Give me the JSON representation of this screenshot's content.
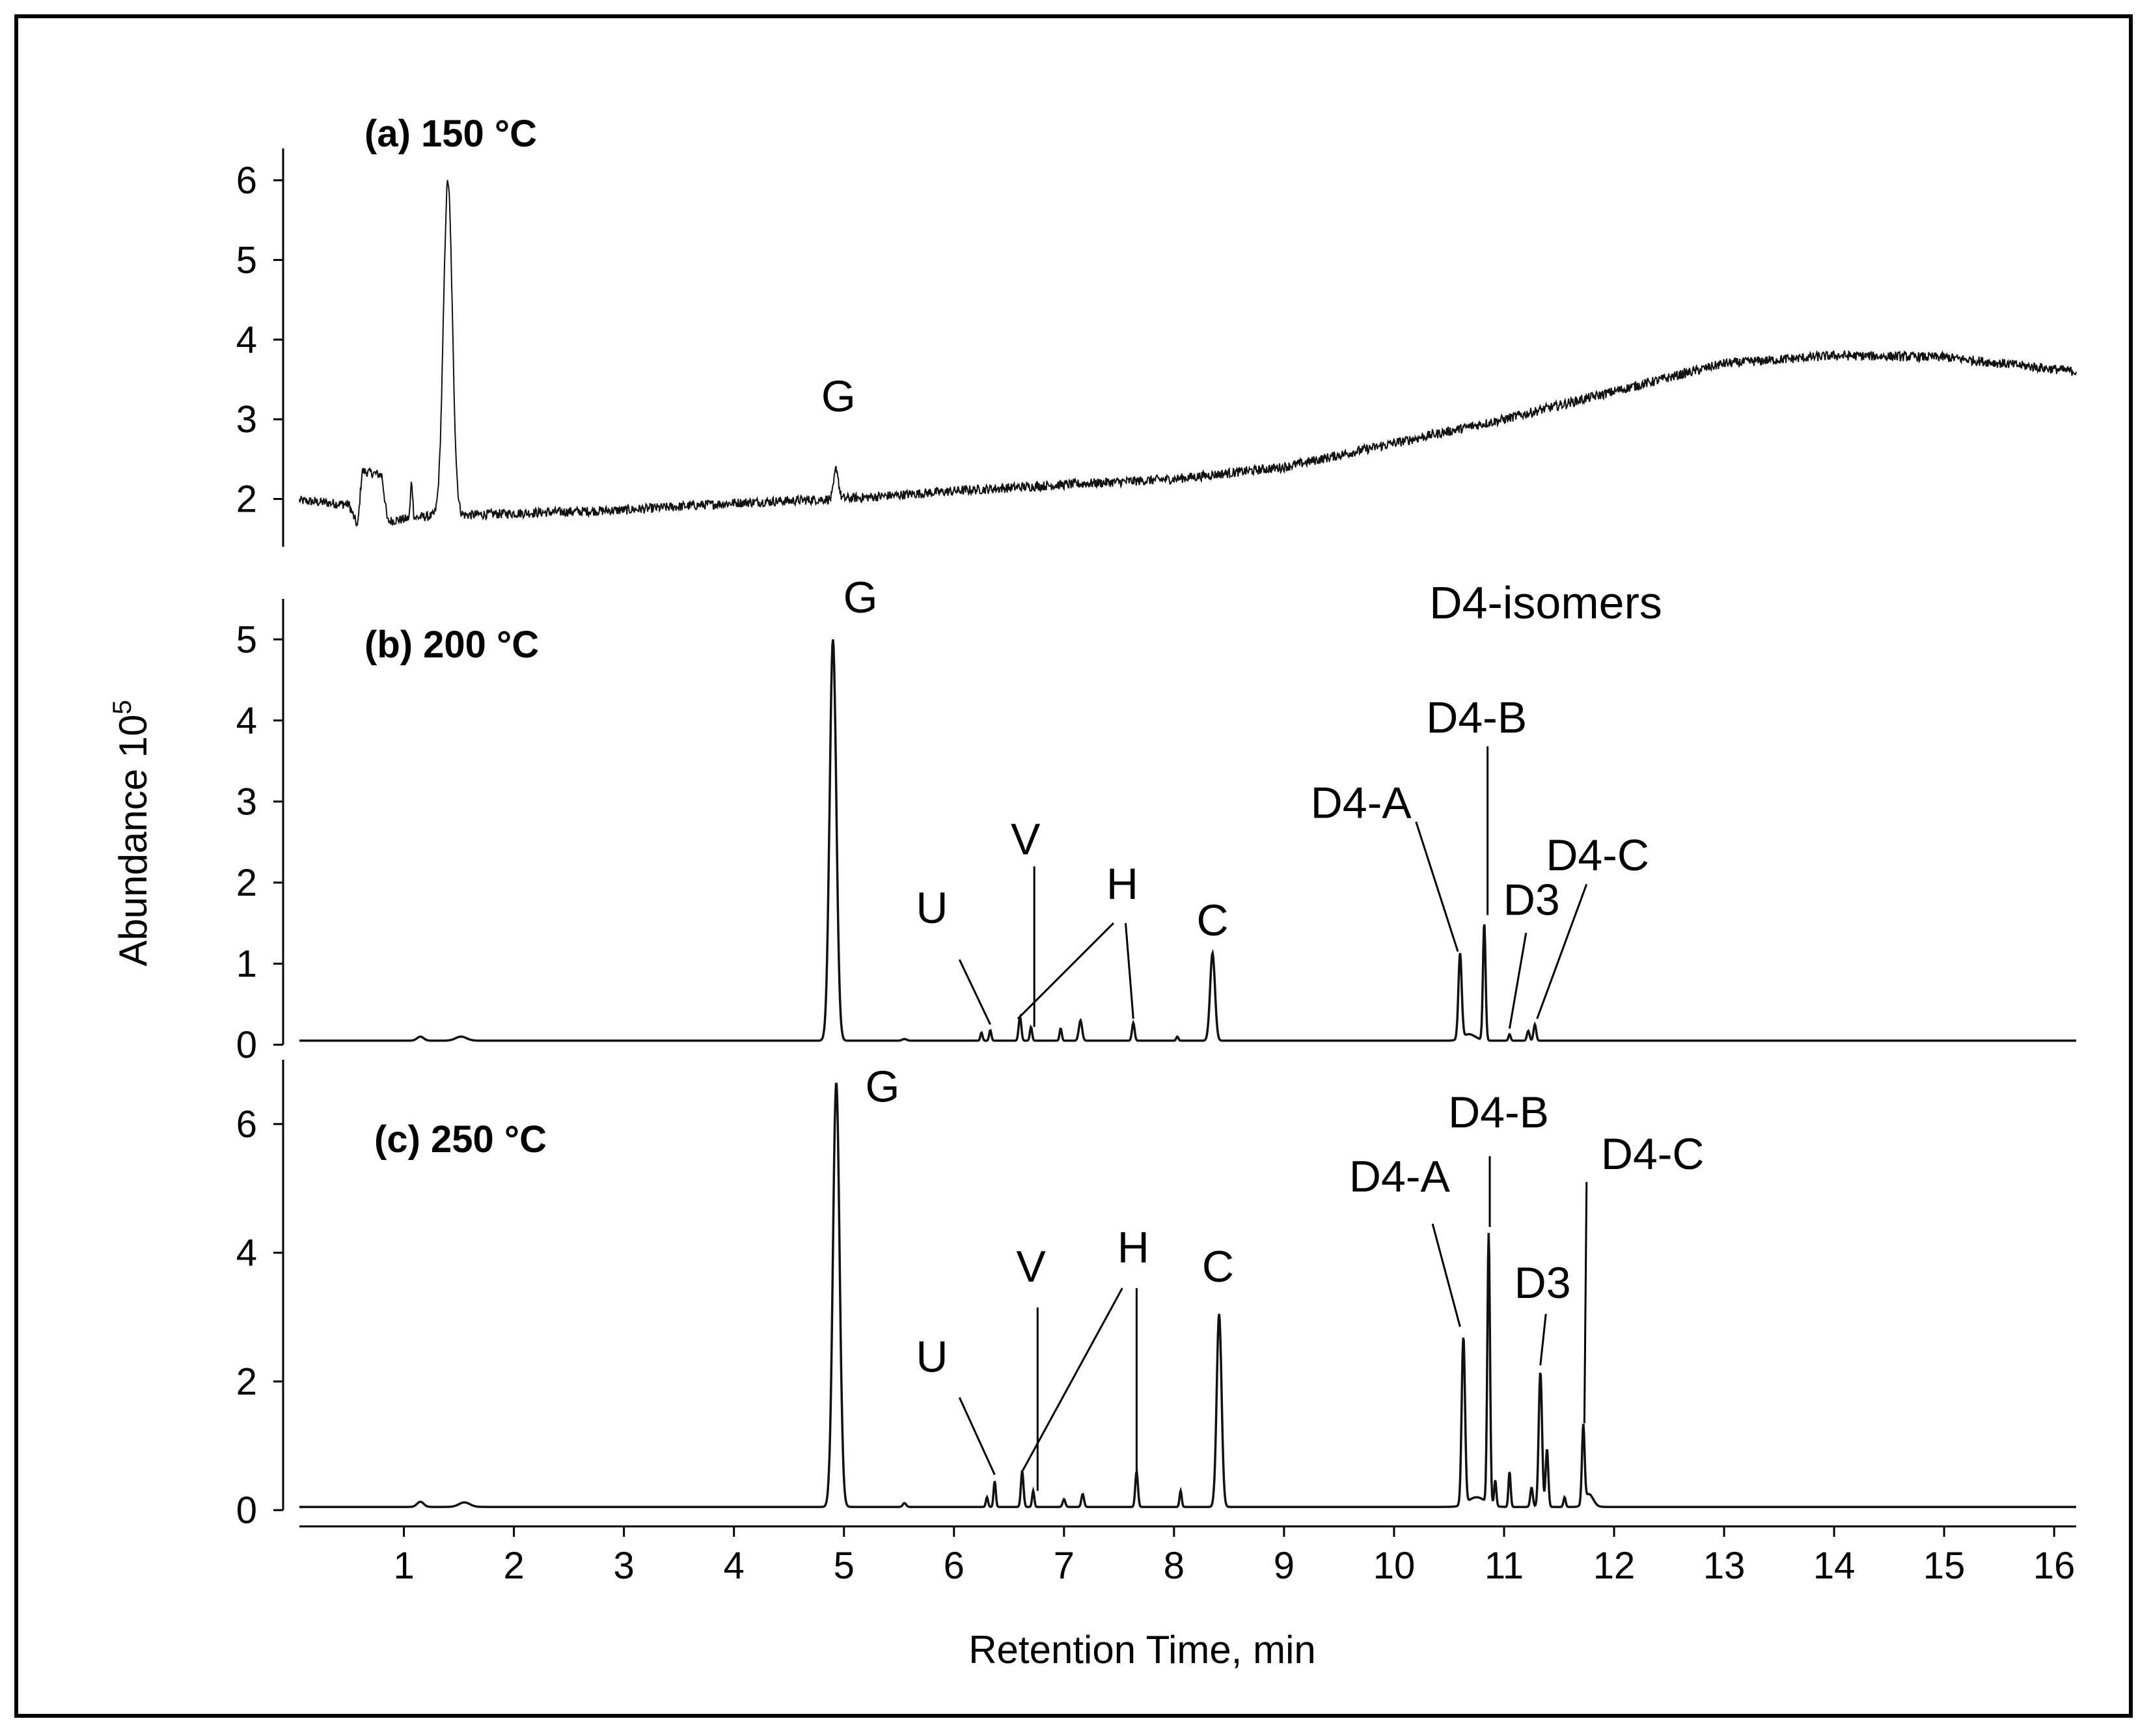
{
  "chart_data": {
    "type": "line",
    "title": "",
    "xlabel": "Retention Time, min",
    "ylabel": "Abundance 10",
    "ylabel_sup": "5",
    "xlim": [
      0.05,
      16.2
    ],
    "x_ticks": [
      1,
      2,
      3,
      4,
      5,
      6,
      7,
      8,
      9,
      10,
      11,
      12,
      13,
      14,
      15,
      16
    ],
    "x_tick_labels": [
      "1",
      "2",
      "3",
      "4",
      "5",
      "6",
      "7",
      "8",
      "9",
      "10",
      "11",
      "12",
      "13",
      "14",
      "15",
      "16"
    ],
    "group_label": "D4-isomers",
    "panels": [
      {
        "title": "(a) 150 °C",
        "ylim": [
          1.4,
          6.4
        ],
        "y_ticks": [
          2,
          3,
          4,
          5,
          6
        ],
        "y_tick_labels": [
          "2",
          "3",
          "4",
          "5",
          "6"
        ],
        "noise": 0.06,
        "baseline": [
          [
            0.05,
            1.98
          ],
          [
            0.5,
            1.93
          ],
          [
            0.58,
            1.65
          ],
          [
            0.62,
            2.35
          ],
          [
            0.8,
            2.3
          ],
          [
            0.85,
            1.72
          ],
          [
            1.2,
            1.78
          ],
          [
            2,
            1.82
          ],
          [
            3,
            1.86
          ],
          [
            4,
            1.95
          ],
          [
            4.9,
            2.0
          ],
          [
            5.2,
            2.02
          ],
          [
            6,
            2.1
          ],
          [
            7,
            2.18
          ],
          [
            8,
            2.25
          ],
          [
            9,
            2.4
          ],
          [
            10,
            2.7
          ],
          [
            11,
            3.0
          ],
          [
            12,
            3.35
          ],
          [
            13,
            3.7
          ],
          [
            14,
            3.8
          ],
          [
            15,
            3.78
          ],
          [
            16.2,
            3.6
          ]
        ],
        "peaks": [
          {
            "x": 1.4,
            "h": 4.2,
            "w": 0.04
          },
          {
            "x": 1.07,
            "h": 0.45,
            "w": 0.01
          },
          {
            "x": 4.93,
            "h": 0.38,
            "w": 0.02
          }
        ],
        "labels": [
          {
            "text": "G",
            "x": 4.95,
            "y": 3.1,
            "leader": null
          }
        ]
      },
      {
        "title": "(b) 200 °C",
        "ylim": [
          0,
          5.5
        ],
        "y_ticks": [
          0,
          1,
          2,
          3,
          4,
          5
        ],
        "y_tick_labels": [
          "0",
          "1",
          "2",
          "3",
          "4",
          "5"
        ],
        "noise": 0.0,
        "baseline": [
          [
            0.05,
            0.05
          ],
          [
            16.2,
            0.05
          ]
        ],
        "peaks": [
          {
            "x": 1.15,
            "h": 0.05,
            "w": 0.03
          },
          {
            "x": 1.52,
            "h": 0.05,
            "w": 0.05
          },
          {
            "x": 4.9,
            "h": 4.95,
            "w": 0.03
          },
          {
            "x": 5.55,
            "h": 0.02,
            "w": 0.02
          },
          {
            "x": 6.25,
            "h": 0.1,
            "w": 0.01
          },
          {
            "x": 6.33,
            "h": 0.13,
            "w": 0.01
          },
          {
            "x": 6.6,
            "h": 0.3,
            "w": 0.012
          },
          {
            "x": 6.7,
            "h": 0.17,
            "w": 0.01
          },
          {
            "x": 6.97,
            "h": 0.15,
            "w": 0.01
          },
          {
            "x": 7.15,
            "h": 0.25,
            "w": 0.015
          },
          {
            "x": 7.63,
            "h": 0.22,
            "w": 0.012
          },
          {
            "x": 8.03,
            "h": 0.05,
            "w": 0.01
          },
          {
            "x": 8.35,
            "h": 1.08,
            "w": 0.022
          },
          {
            "x": 10.6,
            "h": 1.05,
            "w": 0.015
          },
          {
            "x": 10.68,
            "h": 0.08,
            "w": 0.06
          },
          {
            "x": 10.82,
            "h": 1.45,
            "w": 0.012
          },
          {
            "x": 11.05,
            "h": 0.08,
            "w": 0.01
          },
          {
            "x": 11.22,
            "h": 0.12,
            "w": 0.012
          },
          {
            "x": 11.28,
            "h": 0.2,
            "w": 0.012
          }
        ],
        "labels": [
          {
            "text": "G",
            "x": 5.15,
            "y": 5.33,
            "leader": null
          },
          {
            "text": "U",
            "x": 5.8,
            "y": 1.5,
            "leader": [
              6.05,
              1.05,
              6.33,
              0.25
            ]
          },
          {
            "text": "V",
            "x": 6.65,
            "y": 2.35,
            "leader": [
              6.73,
              2.2,
              6.73,
              0.22
            ]
          },
          {
            "text": "H",
            "x": 7.53,
            "y": 1.8,
            "leader": [
              7.45,
              1.5,
              6.58,
              0.32,
              7.56,
              1.5,
              7.63,
              0.32
            ]
          },
          {
            "text": "C",
            "x": 8.35,
            "y": 1.35,
            "leader": null
          },
          {
            "text": "D4-A",
            "x": 9.7,
            "y": 2.8,
            "leader": [
              10.2,
              2.75,
              10.58,
              1.15
            ]
          },
          {
            "text": "D4-B",
            "x": 10.75,
            "y": 3.85,
            "leader": [
              10.85,
              3.68,
              10.85,
              1.6
            ]
          },
          {
            "text": "D3",
            "x": 11.25,
            "y": 1.6,
            "leader": [
              11.2,
              1.38,
              11.05,
              0.2
            ]
          },
          {
            "text": "D4-C",
            "x": 11.85,
            "y": 2.15,
            "leader": [
              11.75,
              1.98,
              11.3,
              0.32
            ]
          }
        ]
      },
      {
        "title": "(c) 250 °C",
        "ylim": [
          0,
          7
        ],
        "y_ticks": [
          0,
          2,
          4,
          6
        ],
        "y_tick_labels": [
          "0",
          "2",
          "4",
          "6"
        ],
        "noise": 0.0,
        "baseline": [
          [
            0.05,
            0.05
          ],
          [
            16.2,
            0.05
          ]
        ],
        "peaks": [
          {
            "x": 1.15,
            "h": 0.08,
            "w": 0.03
          },
          {
            "x": 1.55,
            "h": 0.07,
            "w": 0.05
          },
          {
            "x": 4.93,
            "h": 6.6,
            "w": 0.03
          },
          {
            "x": 5.55,
            "h": 0.06,
            "w": 0.015
          },
          {
            "x": 6.3,
            "h": 0.15,
            "w": 0.01
          },
          {
            "x": 6.37,
            "h": 0.4,
            "w": 0.01
          },
          {
            "x": 6.62,
            "h": 0.55,
            "w": 0.012
          },
          {
            "x": 6.72,
            "h": 0.25,
            "w": 0.01
          },
          {
            "x": 7.0,
            "h": 0.12,
            "w": 0.012
          },
          {
            "x": 7.17,
            "h": 0.2,
            "w": 0.012
          },
          {
            "x": 7.66,
            "h": 0.55,
            "w": 0.012
          },
          {
            "x": 8.06,
            "h": 0.25,
            "w": 0.01
          },
          {
            "x": 8.41,
            "h": 3.0,
            "w": 0.022
          },
          {
            "x": 10.63,
            "h": 2.6,
            "w": 0.015
          },
          {
            "x": 10.75,
            "h": 0.15,
            "w": 0.08
          },
          {
            "x": 10.86,
            "h": 4.2,
            "w": 0.012
          },
          {
            "x": 10.92,
            "h": 0.4,
            "w": 0.01
          },
          {
            "x": 11.05,
            "h": 0.55,
            "w": 0.01
          },
          {
            "x": 11.25,
            "h": 0.3,
            "w": 0.012
          },
          {
            "x": 11.33,
            "h": 2.1,
            "w": 0.015
          },
          {
            "x": 11.39,
            "h": 0.9,
            "w": 0.012
          },
          {
            "x": 11.55,
            "h": 0.15,
            "w": 0.01
          },
          {
            "x": 11.72,
            "h": 1.2,
            "w": 0.012
          },
          {
            "x": 11.77,
            "h": 0.2,
            "w": 0.04
          }
        ],
        "labels": [
          {
            "text": "G",
            "x": 5.35,
            "y": 6.35,
            "leader": null
          },
          {
            "text": "U",
            "x": 5.8,
            "y": 2.15,
            "leader": [
              6.05,
              1.75,
              6.37,
              0.55
            ]
          },
          {
            "text": "V",
            "x": 6.7,
            "y": 3.55,
            "leader": [
              6.76,
              3.15,
              6.76,
              0.3
            ]
          },
          {
            "text": "H",
            "x": 7.63,
            "y": 3.85,
            "leader": [
              7.53,
              3.45,
              6.62,
              0.6,
              7.66,
              3.45,
              7.66,
              0.6
            ]
          },
          {
            "text": "C",
            "x": 8.4,
            "y": 3.55,
            "leader": null
          },
          {
            "text": "D4-A",
            "x": 10.05,
            "y": 4.95,
            "leader": [
              10.35,
              4.45,
              10.6,
              2.85
            ]
          },
          {
            "text": "D4-B",
            "x": 10.95,
            "y": 5.95,
            "leader": [
              10.87,
              5.5,
              10.87,
              4.4
            ]
          },
          {
            "text": "D3",
            "x": 11.35,
            "y": 3.3,
            "leader": [
              11.38,
              3.05,
              11.33,
              2.25
            ]
          },
          {
            "text": "D4-C",
            "x": 12.35,
            "y": 5.3,
            "leader": [
              11.75,
              5.1,
              11.73,
              1.35
            ]
          }
        ]
      }
    ]
  }
}
